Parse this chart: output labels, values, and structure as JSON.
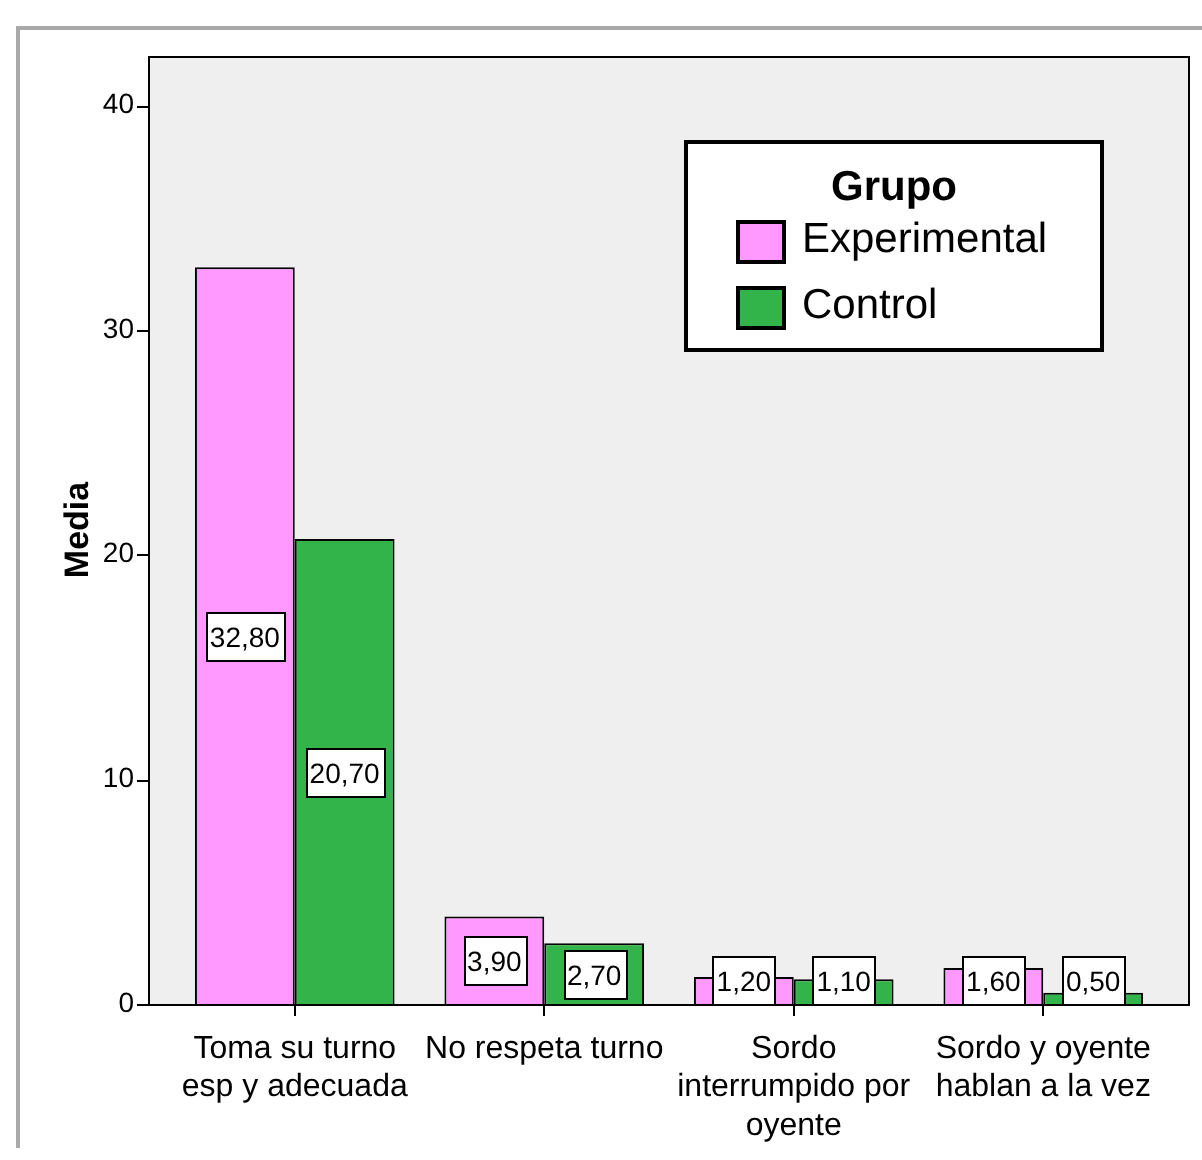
{
  "chart_data": {
    "type": "bar",
    "ylabel": "Media",
    "legend_title": "Grupo",
    "legend": "top right",
    "grid": false,
    "categories": [
      "Toma su turno esp y adecuada",
      "No respeta turno",
      "Sordo interrumpido por oyente",
      "Sordo y oyente hablan a la vez"
    ],
    "series": [
      {
        "name": "Experimental",
        "color": "#ff99ff",
        "values": [
          32.8,
          3.9,
          1.2,
          1.6
        ],
        "value_labels": [
          "32,80",
          "3,90",
          "1,20",
          "1,60"
        ]
      },
      {
        "name": "Control",
        "color": "#33b44a",
        "values": [
          20.7,
          2.7,
          1.1,
          0.5
        ],
        "value_labels": [
          "20,70",
          "2,70",
          "1,10",
          "0,50"
        ]
      }
    ],
    "ylim": [
      0,
      42.2
    ],
    "yticks": [
      0,
      10,
      20,
      30,
      40
    ]
  }
}
